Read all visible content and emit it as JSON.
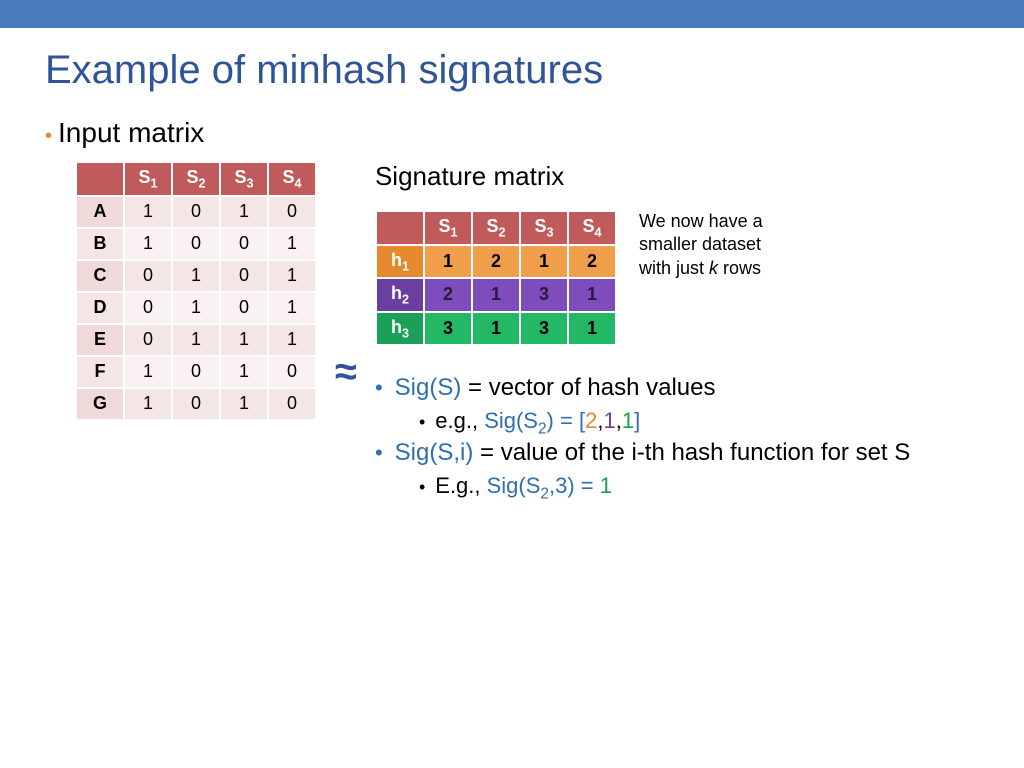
{
  "colors": {
    "topbar": "#4a7ebb",
    "title": "#2f5597",
    "bullet": "#e5882e",
    "blue": "#2f6fb0",
    "orange": "#e5882e",
    "purple": "#6b3fa0",
    "green": "#1ba05a",
    "table_header_bg": "#c15b5b",
    "input_row_a": "#f5e6e6",
    "input_row_b": "#faf2f2",
    "input_rowlabel": "#efd9d9"
  },
  "title": "Example of minhash signatures",
  "bullet1": "Input matrix",
  "approx": "≈",
  "input_matrix": {
    "type": "table",
    "columns": [
      "",
      "S₁",
      "S₂",
      "S₃",
      "S₄"
    ],
    "rows": [
      [
        "A",
        "1",
        "0",
        "1",
        "0"
      ],
      [
        "B",
        "1",
        "0",
        "0",
        "1"
      ],
      [
        "C",
        "0",
        "1",
        "0",
        "1"
      ],
      [
        "D",
        "0",
        "1",
        "0",
        "1"
      ],
      [
        "E",
        "0",
        "1",
        "1",
        "1"
      ],
      [
        "F",
        "1",
        "0",
        "1",
        "0"
      ],
      [
        "G",
        "1",
        "0",
        "1",
        "0"
      ]
    ]
  },
  "signature_matrix": {
    "title": "Signature matrix",
    "type": "table",
    "columns": [
      "",
      "S₁",
      "S₂",
      "S₃",
      "S₄"
    ],
    "rows": [
      {
        "label": "h₁",
        "values": [
          "1",
          "2",
          "1",
          "2"
        ],
        "row_color": "#e5882e"
      },
      {
        "label": "h₂",
        "values": [
          "2",
          "1",
          "3",
          "1"
        ],
        "row_color": "#6b3fa0"
      },
      {
        "label": "h₃",
        "values": [
          "3",
          "1",
          "3",
          "1"
        ],
        "row_color": "#1ba05a"
      }
    ]
  },
  "note": {
    "line1": "We now have a",
    "line2": "smaller dataset",
    "line3_a": "with just ",
    "line3_k": "k",
    "line3_b": " rows"
  },
  "explain": {
    "item1_a": "Sig(S)",
    "item1_b": " = vector of hash values",
    "item1_sub_a": "e.g., ",
    "item1_sub_b": "Sig(S",
    "item1_sub_b2": "2",
    "item1_sub_c": ") = ",
    "item1_sub_bracket_open": "[",
    "item1_sub_v1": "2",
    "item1_sub_comma1": ",",
    "item1_sub_v2": "1",
    "item1_sub_comma2": ",",
    "item1_sub_v3": "1",
    "item1_sub_bracket_close": "]",
    "item2_a": "Sig(S,i)",
    "item2_b": " = value of the i-th hash function for set S",
    "item2_sub_a": "E.g., ",
    "item2_sub_b": "Sig(S",
    "item2_sub_b2": "2",
    "item2_sub_c": ",3) = ",
    "item2_sub_val": "1"
  }
}
